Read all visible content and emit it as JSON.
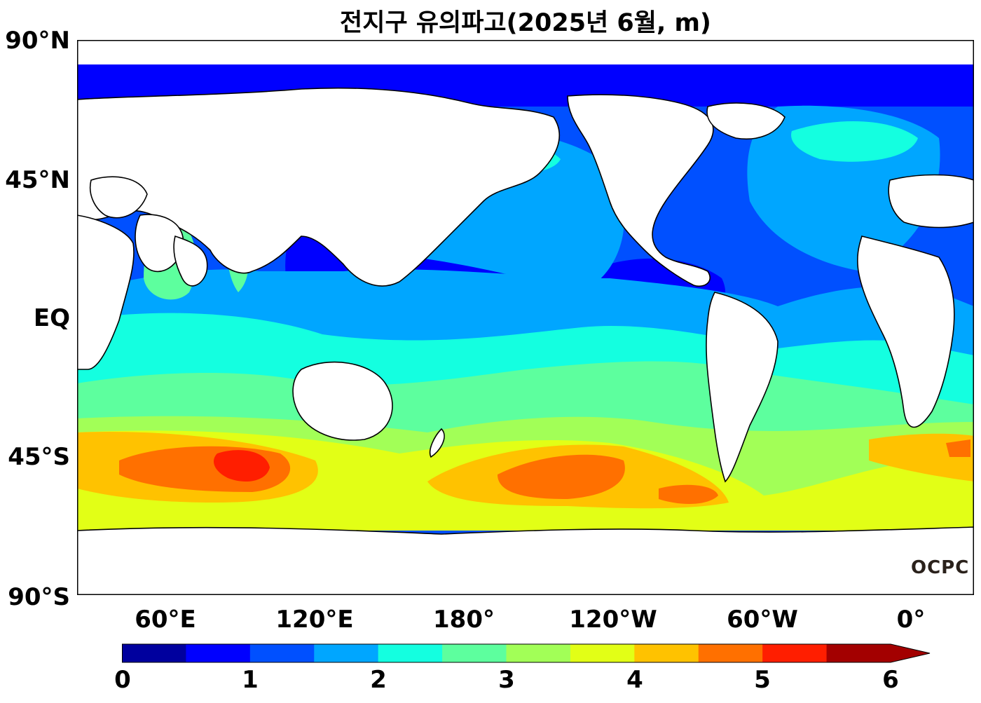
{
  "title": "전지구 유의파고(2025년 6월, m)",
  "y_axis": {
    "labels": [
      "90°N",
      "45°N",
      "EQ",
      "45°S",
      "90°S"
    ]
  },
  "x_axis": {
    "labels": [
      "60°E",
      "120°E",
      "180°",
      "120°W",
      "60°W",
      "0°"
    ]
  },
  "colorbar": {
    "tick_labels": [
      "0",
      "1",
      "2",
      "3",
      "4",
      "5",
      "6"
    ],
    "colors": [
      "#00009e",
      "#0000ff",
      "#0050ff",
      "#00a6ff",
      "#14ffe0",
      "#5dff9e",
      "#a2ff57",
      "#e2ff16",
      "#ffc200",
      "#ff7000",
      "#ff1e00",
      "#a30000"
    ],
    "extend": "max"
  },
  "watermark": "OCPC",
  "colors": {
    "land": "#ffffff",
    "coastline": "#000000",
    "frame": "#000000"
  }
}
